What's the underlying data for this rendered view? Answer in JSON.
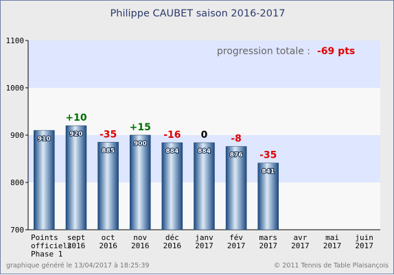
{
  "chart_data": {
    "type": "bar",
    "title": "Philippe CAUBET    saison 2016-2017",
    "categories": [
      "Points officiels Phase 1",
      "sept 2016",
      "oct 2016",
      "nov 2016",
      "déc 2016",
      "janv 2017",
      "fév 2017",
      "mars 2017",
      "avr 2017",
      "mai 2017",
      "juin 2017"
    ],
    "category_lines": [
      [
        "Points",
        "officiels",
        "Phase 1"
      ],
      [
        "sept",
        "2016"
      ],
      [
        "oct",
        "2016"
      ],
      [
        "nov",
        "2016"
      ],
      [
        "déc",
        "2016"
      ],
      [
        "janv",
        "2017"
      ],
      [
        "fév",
        "2017"
      ],
      [
        "mars",
        "2017"
      ],
      [
        "avr",
        "2017"
      ],
      [
        "mai",
        "2017"
      ],
      [
        "juin",
        "2017"
      ]
    ],
    "values": [
      910,
      920,
      885,
      900,
      884,
      884,
      876,
      841,
      null,
      null,
      null
    ],
    "deltas": [
      null,
      "+10",
      "-35",
      "+15",
      "-16",
      "0",
      "-8",
      "-35",
      null,
      null,
      null
    ],
    "ylim": [
      700,
      1100
    ],
    "yticks": [
      700,
      800,
      900,
      1000,
      1100
    ],
    "xlabel": "",
    "ylabel": "",
    "grid": true,
    "progression_label": "progression totale :",
    "progression_value": "-69 pts",
    "colors": {
      "positive": "#007000",
      "negative": "#e00000",
      "zero": "#000000",
      "band_blue": "#dfe6ff",
      "band_white": "#f8f8f8",
      "bar_dark": "#1e4d86",
      "bar_light": "#d6e6f5"
    }
  },
  "footer": {
    "left": "graphique généré le 13/04/2017 à 18:25:39",
    "right": "© 2011 Tennis de Table Plaisançois"
  }
}
